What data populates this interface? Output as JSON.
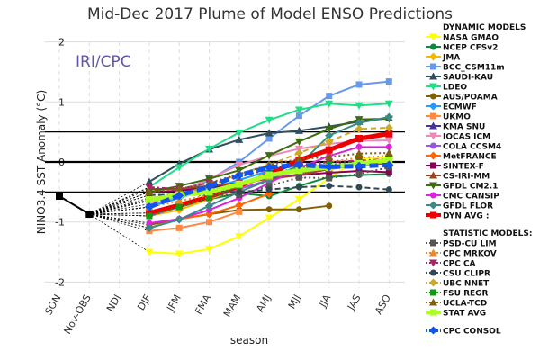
{
  "chart_data": {
    "type": "line",
    "title": "Mid-Dec 2017 Plume of Model ENSO Predictions",
    "watermark": "IRI/CPC",
    "xlabel": "season",
    "ylabel": "NINO3.4 SST Anomaly (°C)",
    "ylim": [
      -2,
      2
    ],
    "yticks": [
      "2",
      "1",
      "0",
      "-1",
      "-2"
    ],
    "yticks_values": [
      2,
      1,
      0,
      -1,
      -2
    ],
    "categories": [
      "SON",
      "Nov-OBS",
      "NDJ",
      "DJF",
      "JFM",
      "FMA",
      "MAM",
      "AMJ",
      "MJJ",
      "JJA",
      "JAS",
      "ASO"
    ],
    "reference_lines": [
      0.5,
      0,
      -0.5
    ],
    "observed": {
      "name": "Observed",
      "x": [
        "SON",
        "Nov-OBS"
      ],
      "values": [
        -0.57,
        -0.87
      ],
      "color": "#000000"
    },
    "forecast_seasons": [
      "DJF",
      "JFM",
      "FMA",
      "MAM",
      "AMJ",
      "MJJ",
      "JJA",
      "JAS",
      "ASO"
    ],
    "legend_headers": {
      "dynamic": "DYNAMIC MODELS",
      "statistic": "STATISTIC MODELS:"
    },
    "dynamic": [
      {
        "name": "NASA GMAO",
        "color": "#ffff00",
        "marker": "tri-down",
        "style": "solid",
        "values": [
          -1.5,
          -1.53,
          -1.45,
          -1.24,
          -0.93,
          -0.62,
          -0.27,
          0.05,
          0.08
        ]
      },
      {
        "name": "NCEP CFSv2",
        "color": "#0a8a3a",
        "marker": "circle",
        "style": "solid",
        "values": [
          -0.85,
          -0.75,
          -0.62,
          -0.52,
          -0.57,
          -0.4,
          -0.25,
          -0.22,
          -0.2
        ]
      },
      {
        "name": "JMA",
        "color": "#f5b800",
        "marker": "diamond",
        "style": "solid",
        "values": [
          -0.9,
          -0.8,
          -0.62,
          -0.45,
          -0.3,
          -0.1,
          null,
          null,
          null
        ]
      },
      {
        "name": "BCC_CSM11m",
        "color": "#6699ee",
        "marker": "square",
        "style": "solid",
        "values": [
          -0.75,
          -0.55,
          -0.3,
          0.0,
          0.39,
          0.77,
          1.1,
          1.29,
          1.34
        ]
      },
      {
        "name": "SAUDI-KAU",
        "color": "#2f4f5f",
        "marker": "tri-up",
        "style": "solid",
        "values": [
          -0.33,
          -0.03,
          0.21,
          0.37,
          0.48,
          0.52,
          0.59,
          0.67,
          0.73
        ]
      },
      {
        "name": "LDEO",
        "color": "#22dd88",
        "marker": "tri-down",
        "style": "solid",
        "values": [
          -0.42,
          -0.09,
          0.22,
          0.49,
          0.7,
          0.87,
          0.97,
          0.94,
          0.97
        ]
      },
      {
        "name": "AUS/POAMA",
        "color": "#806000",
        "marker": "circle",
        "style": "solid",
        "values": [
          -1.05,
          -0.95,
          -0.87,
          -0.8,
          -0.79,
          -0.79,
          -0.73,
          null,
          null
        ]
      },
      {
        "name": "ECMWF",
        "color": "#2299ff",
        "marker": "diamond",
        "style": "solid",
        "values": [
          -0.75,
          -0.6,
          -0.45,
          -0.3,
          -0.15,
          -0.05,
          null,
          null,
          null
        ]
      },
      {
        "name": "UKMO",
        "color": "#ff8844",
        "marker": "square",
        "style": "solid",
        "values": [
          -1.15,
          -1.1,
          -1.0,
          -0.83,
          null,
          null,
          null,
          null,
          null
        ]
      },
      {
        "name": "KMA SNU",
        "color": "#443399",
        "marker": "tri-up",
        "style": "solid",
        "values": [
          -0.6,
          -0.55,
          -0.45,
          -0.35,
          -0.25,
          -0.15,
          -0.1,
          -0.05,
          0.0
        ]
      },
      {
        "name": "IOCAS ICM",
        "color": "#ee88bb",
        "marker": "tri-down",
        "style": "solid",
        "values": [
          -0.7,
          -0.5,
          -0.28,
          -0.05,
          0.1,
          0.22,
          0.3,
          0.35,
          0.36
        ]
      },
      {
        "name": "COLA CCSM4",
        "color": "#9955dd",
        "marker": "circle",
        "style": "solid",
        "values": [
          -0.9,
          -0.75,
          -0.6,
          -0.45,
          -0.3,
          -0.2,
          -0.1,
          -0.05,
          0.0
        ]
      },
      {
        "name": "MetFRANCE",
        "color": "#ff6600",
        "marker": "diamond",
        "style": "solid",
        "values": [
          -1.1,
          -0.95,
          -0.87,
          -0.72,
          -0.53,
          null,
          null,
          null,
          null
        ]
      },
      {
        "name": "SINTEX-F",
        "color": "#880055",
        "marker": "square",
        "style": "solid",
        "values": [
          -0.5,
          -0.48,
          -0.42,
          -0.35,
          -0.28,
          -0.22,
          -0.18,
          -0.15,
          -0.17
        ]
      },
      {
        "name": "CS-IRI-MM",
        "color": "#994422",
        "marker": "tri-up",
        "style": "solid",
        "values": [
          -0.45,
          -0.45,
          -0.4,
          -0.35,
          -0.28,
          -0.22,
          -0.12,
          -0.05,
          -0.02
        ]
      },
      {
        "name": "GFDL CM2.1",
        "color": "#3d6b10",
        "marker": "tri-down",
        "style": "solid",
        "values": [
          -0.5,
          -0.4,
          -0.28,
          -0.14,
          0.11,
          0.34,
          0.55,
          0.71,
          0.72
        ]
      },
      {
        "name": "CMC CANSIP",
        "color": "#dd22dd",
        "marker": "circle",
        "style": "solid",
        "values": [
          -1.02,
          -0.95,
          -0.8,
          -0.6,
          -0.35,
          -0.1,
          0.1,
          0.25,
          0.25
        ]
      },
      {
        "name": "GFDL FLOR",
        "color": "#3a8a8a",
        "marker": "diamond",
        "style": "solid",
        "values": [
          -1.1,
          -0.96,
          -0.73,
          -0.5,
          -0.3,
          -0.05,
          0.44,
          0.65,
          0.75
        ]
      },
      {
        "name": "DYN AVG :",
        "color": "#ee0000",
        "marker": "square",
        "style": "thick",
        "values": [
          -0.85,
          -0.72,
          -0.58,
          -0.4,
          -0.2,
          0.03,
          0.2,
          0.39,
          0.47
        ]
      }
    ],
    "statistic": [
      {
        "name": "PSD-CU LIM",
        "color": "#555555",
        "marker": "square",
        "style": "dotted",
        "values": [
          -0.55,
          -0.55,
          -0.55,
          -0.55,
          -0.4,
          -0.26,
          -0.27,
          -0.2,
          -0.09
        ]
      },
      {
        "name": "CPC MRKOV",
        "color": "#ee8822",
        "marker": "tri-up",
        "style": "dotted",
        "values": [
          -0.75,
          -0.65,
          -0.55,
          -0.4,
          -0.25,
          -0.1,
          0.0,
          0.07,
          0.1
        ]
      },
      {
        "name": "CPC CA",
        "color": "#aa2266",
        "marker": "tri-down",
        "style": "dashdot",
        "values": [
          -0.42,
          -0.45,
          -0.35,
          -0.25,
          -0.12,
          -0.05,
          0.0,
          0.02,
          0.05
        ]
      },
      {
        "name": "CSU CLIPR",
        "color": "#2f4a55",
        "marker": "circle",
        "style": "dashed",
        "values": [
          -0.55,
          -0.55,
          -0.5,
          -0.5,
          -0.46,
          -0.42,
          -0.4,
          -0.42,
          -0.46
        ]
      },
      {
        "name": "UBC NNET",
        "color": "#ccaa22",
        "marker": "diamond",
        "style": "dashed",
        "values": [
          -0.65,
          -0.55,
          -0.4,
          -0.2,
          -0.05,
          0.15,
          0.34,
          0.55,
          0.57
        ]
      },
      {
        "name": "FSU REGR",
        "color": "#119911",
        "marker": "square",
        "style": "dotted",
        "values": [
          -0.9,
          -0.75,
          -0.6,
          -0.4,
          -0.2,
          -0.1,
          -0.05,
          0.0,
          0.0
        ]
      },
      {
        "name": "UCLA-TCD",
        "color": "#806010",
        "marker": "tri-up",
        "style": "dotted",
        "values": [
          -0.5,
          -0.45,
          -0.35,
          -0.2,
          -0.05,
          0.05,
          0.08,
          0.14,
          0.15
        ]
      },
      {
        "name": "STAT AVG",
        "color": "#aaff22",
        "marker": "square",
        "style": "thick",
        "values": [
          -0.63,
          -0.55,
          -0.5,
          -0.37,
          -0.22,
          -0.14,
          -0.09,
          -0.03,
          0.03
        ]
      }
    ],
    "consensus": {
      "name": "CPC CONSOL",
      "color": "#1155ee",
      "marker": "diamond",
      "style": "thickdash",
      "values": [
        -0.75,
        -0.56,
        -0.41,
        -0.22,
        -0.09,
        -0.05,
        -0.08,
        -0.07,
        -0.05
      ]
    }
  }
}
